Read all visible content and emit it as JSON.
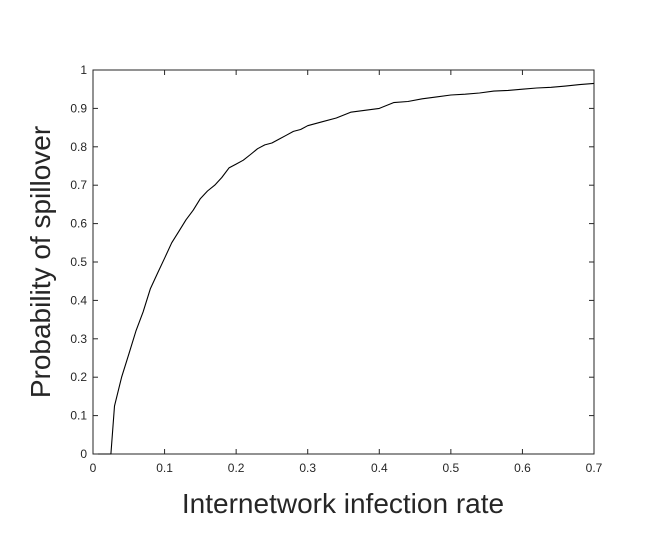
{
  "chart_data": {
    "type": "line",
    "title": "",
    "xlabel": "Internetwork infection rate",
    "ylabel": "Probability of spillover",
    "xlim": [
      0,
      0.7
    ],
    "ylim": [
      0,
      1
    ],
    "xticks": [
      0,
      0.1,
      0.2,
      0.3,
      0.4,
      0.5,
      0.6,
      0.7
    ],
    "xtick_labels": [
      "0",
      "0.1",
      "0.2",
      "0.3",
      "0.4",
      "0.5",
      "0.6",
      "0.7"
    ],
    "yticks": [
      0,
      0.1,
      0.2,
      0.3,
      0.4,
      0.5,
      0.6,
      0.7,
      0.8,
      0.9,
      1
    ],
    "ytick_labels": [
      "0",
      "0.1",
      "0.2",
      "0.3",
      "0.4",
      "0.5",
      "0.6",
      "0.7",
      "0.8",
      "0.9",
      "1"
    ],
    "grid": false,
    "box": true,
    "line_color": "#000000",
    "series": [
      {
        "name": "",
        "x": [
          0,
          0.025,
          0.03,
          0.04,
          0.05,
          0.06,
          0.07,
          0.08,
          0.09,
          0.1,
          0.11,
          0.12,
          0.13,
          0.14,
          0.15,
          0.16,
          0.17,
          0.18,
          0.19,
          0.2,
          0.21,
          0.22,
          0.23,
          0.24,
          0.25,
          0.26,
          0.27,
          0.28,
          0.29,
          0.3,
          0.32,
          0.34,
          0.36,
          0.38,
          0.4,
          0.42,
          0.44,
          0.46,
          0.48,
          0.5,
          0.52,
          0.54,
          0.56,
          0.58,
          0.6,
          0.62,
          0.64,
          0.66,
          0.68,
          0.7
        ],
        "y": [
          0,
          0,
          0.125,
          0.2,
          0.26,
          0.32,
          0.37,
          0.43,
          0.47,
          0.51,
          0.55,
          0.58,
          0.61,
          0.635,
          0.665,
          0.685,
          0.7,
          0.72,
          0.745,
          0.755,
          0.765,
          0.78,
          0.795,
          0.805,
          0.81,
          0.82,
          0.83,
          0.84,
          0.845,
          0.855,
          0.865,
          0.875,
          0.89,
          0.895,
          0.9,
          0.915,
          0.918,
          0.925,
          0.93,
          0.935,
          0.937,
          0.94,
          0.945,
          0.947,
          0.95,
          0.953,
          0.955,
          0.958,
          0.962,
          0.965
        ]
      }
    ]
  }
}
